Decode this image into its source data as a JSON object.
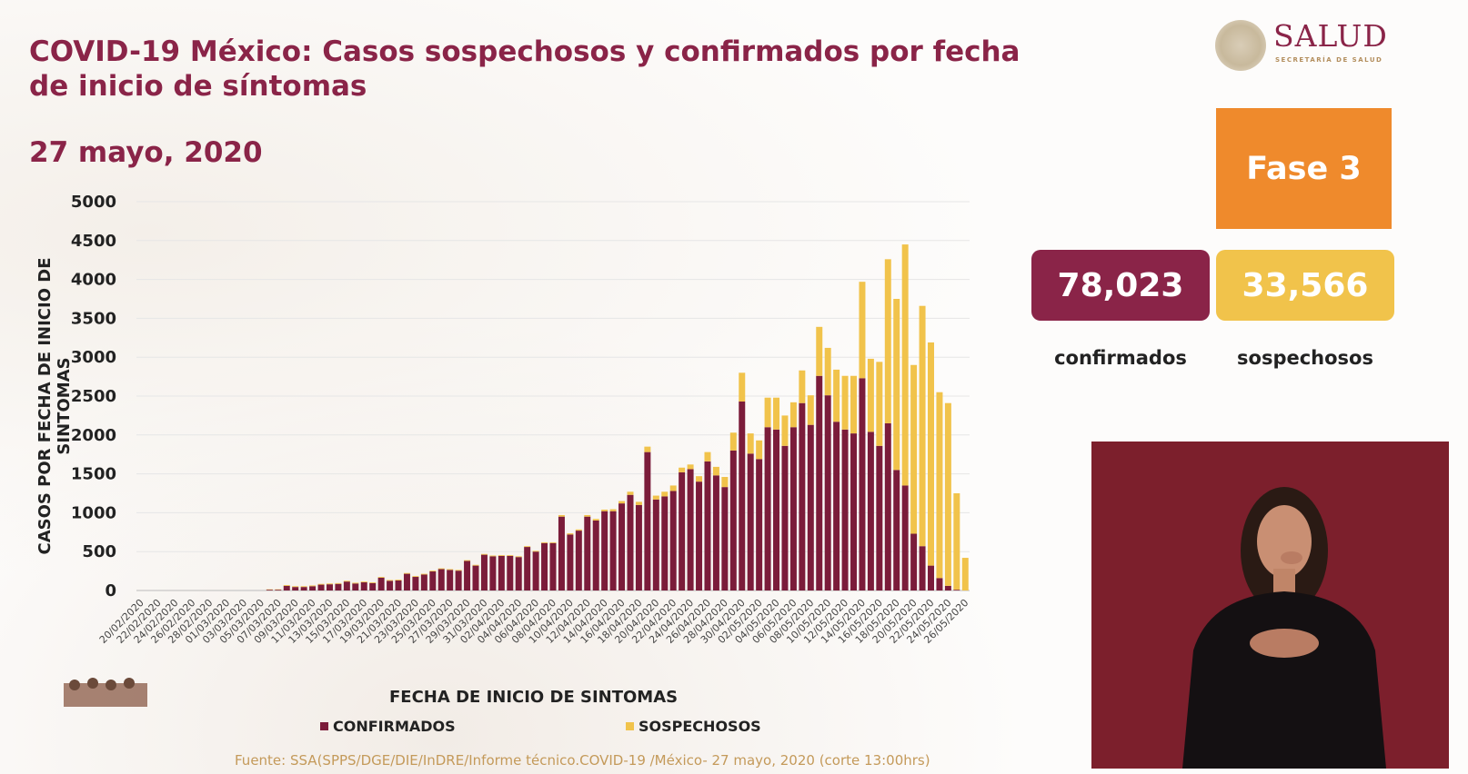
{
  "header": {
    "title": "COVID-19 México: Casos sospechosos y confirmados por fecha de inicio de síntomas",
    "date": "27 mayo, 2020",
    "logo_text": "SALUD",
    "logo_subtext": "SECRETARÍA DE SALUD"
  },
  "sidebar": {
    "phase": "Fase 3",
    "confirmed_total": "78,023",
    "confirmed_label": "confirmados",
    "suspected_total": "33,566",
    "suspected_label": "sospechosos"
  },
  "colors": {
    "confirmed": "#7b1c3a",
    "suspected": "#f1c34b",
    "phase": "#ef8a2c",
    "title": "#8a2448"
  },
  "source": "Fuente: SSA(SPPS/DGE/DIE/InDRE/Informe técnico.COVID-19 /México- 27 mayo, 2020 (corte 13:00hrs)",
  "chart_data": {
    "type": "bar",
    "stacked": true,
    "xlabel": "FECHA DE INICIO DE SINTOMAS",
    "ylabel": "CASOS POR FECHA DE INICIO DE SINTOMAS",
    "ylim": [
      0,
      5000
    ],
    "yticks": [
      0,
      500,
      1000,
      1500,
      2000,
      2500,
      3000,
      3500,
      4000,
      4500,
      5000
    ],
    "grid": true,
    "legend_position": "bottom",
    "categories": [
      "20/02/2020",
      "21/02/2020",
      "22/02/2020",
      "23/02/2020",
      "24/02/2020",
      "25/02/2020",
      "26/02/2020",
      "27/02/2020",
      "28/02/2020",
      "29/02/2020",
      "01/03/2020",
      "02/03/2020",
      "03/03/2020",
      "04/03/2020",
      "05/03/2020",
      "06/03/2020",
      "07/03/2020",
      "08/03/2020",
      "09/03/2020",
      "10/03/2020",
      "11/03/2020",
      "12/03/2020",
      "13/03/2020",
      "14/03/2020",
      "15/03/2020",
      "16/03/2020",
      "17/03/2020",
      "18/03/2020",
      "19/03/2020",
      "20/03/2020",
      "21/03/2020",
      "22/03/2020",
      "23/03/2020",
      "24/03/2020",
      "25/03/2020",
      "26/03/2020",
      "27/03/2020",
      "28/03/2020",
      "29/03/2020",
      "30/03/2020",
      "31/03/2020",
      "01/04/2020",
      "02/04/2020",
      "03/04/2020",
      "04/04/2020",
      "05/04/2020",
      "06/04/2020",
      "07/04/2020",
      "08/04/2020",
      "09/04/2020",
      "10/04/2020",
      "11/04/2020",
      "12/04/2020",
      "13/04/2020",
      "14/04/2020",
      "15/04/2020",
      "16/04/2020",
      "17/04/2020",
      "18/04/2020",
      "19/04/2020",
      "20/04/2020",
      "21/04/2020",
      "22/04/2020",
      "23/04/2020",
      "24/04/2020",
      "25/04/2020",
      "26/04/2020",
      "27/04/2020",
      "28/04/2020",
      "29/04/2020",
      "30/04/2020",
      "01/05/2020",
      "02/05/2020",
      "03/05/2020",
      "04/05/2020",
      "05/05/2020",
      "06/05/2020",
      "07/05/2020",
      "08/05/2020",
      "09/05/2020",
      "10/05/2020",
      "11/05/2020",
      "12/05/2020",
      "13/05/2020",
      "14/05/2020",
      "15/05/2020",
      "16/05/2020",
      "17/05/2020",
      "18/05/2020",
      "19/05/2020",
      "20/05/2020",
      "21/05/2020",
      "22/05/2020",
      "23/05/2020",
      "24/05/2020",
      "25/05/2020",
      "26/05/2020"
    ],
    "series": [
      {
        "name": "CONFIRMADOS",
        "color": "#7b1c3a",
        "values": [
          0,
          0,
          0,
          0,
          0,
          0,
          0,
          0,
          0,
          0,
          0,
          0,
          0,
          0,
          0,
          10,
          10,
          60,
          45,
          45,
          55,
          75,
          80,
          85,
          115,
          90,
          105,
          95,
          165,
          125,
          130,
          215,
          175,
          205,
          245,
          275,
          265,
          255,
          380,
          320,
          460,
          440,
          445,
          445,
          430,
          560,
          500,
          610,
          610,
          950,
          720,
          770,
          950,
          900,
          1020,
          1020,
          1120,
          1230,
          1100,
          1780,
          1170,
          1210,
          1280,
          1520,
          1560,
          1400,
          1660,
          1480,
          1330,
          1800,
          2430,
          1760,
          1690,
          2100,
          2070,
          1860,
          2100,
          2410,
          2130,
          2760,
          2510,
          2170,
          2070,
          2020,
          2730,
          2040,
          1860,
          2150,
          1550,
          1350,
          730,
          570,
          320,
          160,
          60,
          10,
          0
        ]
      },
      {
        "name": "SOSPECHOSOS",
        "color": "#f1c34b",
        "values": [
          0,
          0,
          0,
          0,
          0,
          0,
          0,
          0,
          0,
          0,
          0,
          0,
          0,
          0,
          0,
          5,
          5,
          10,
          10,
          10,
          10,
          10,
          10,
          10,
          10,
          10,
          10,
          10,
          10,
          10,
          10,
          10,
          10,
          10,
          10,
          10,
          10,
          10,
          10,
          10,
          10,
          10,
          10,
          10,
          10,
          10,
          10,
          10,
          10,
          20,
          15,
          15,
          20,
          20,
          20,
          25,
          30,
          40,
          40,
          70,
          50,
          60,
          70,
          60,
          60,
          70,
          120,
          110,
          130,
          230,
          370,
          260,
          240,
          380,
          410,
          390,
          320,
          420,
          380,
          630,
          610,
          670,
          690,
          740,
          1240,
          940,
          1080,
          2110,
          2200,
          3100,
          2170,
          3090,
          2870,
          2390,
          2350,
          1240,
          420
        ]
      }
    ]
  }
}
